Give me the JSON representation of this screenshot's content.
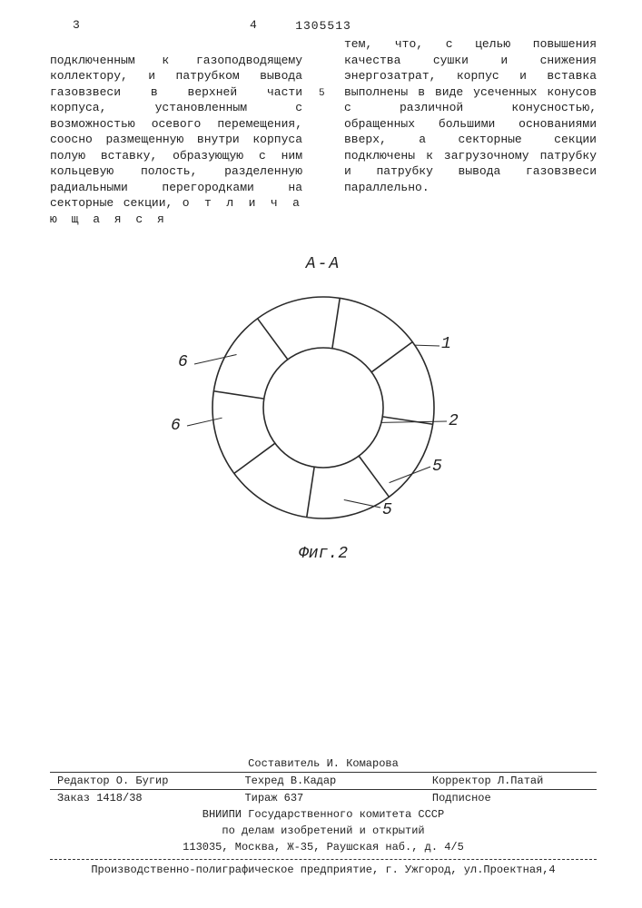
{
  "header": {
    "page_left": "3",
    "patent_number": "1305513",
    "page_right": "4"
  },
  "text": {
    "col_left": "подключенным к газоподводящему коллектору, и патрубком вывода газовзвеси в верхней части корпуса, установленным с возможностью осевого перемещения, соосно размещенную внутри корпуса полую вставку, образующую с ним кольцевую полость, разделенную радиальными перегородками на секторные секции, ",
    "col_left_spaced": "о т л и ч а ю щ а я с я",
    "col_right": "тем, что, с целью повышения качества сушки и снижения энергозатрат, корпус и вставка выполнены в виде усеченных конусов с различной конусностью, обращенных большими основаниями вверх, а секторные секции подключены к загрузочному патрубку и патрубку вывода газовзвеси параллельно.",
    "line_marker": "5"
  },
  "figure": {
    "section_label": "А-А",
    "caption": "Фиг.2",
    "outer_radius": 122,
    "inner_radius": 66,
    "stroke_color": "#2a2a2a",
    "stroke_width": 1.6,
    "n_sectors": 8,
    "callouts": {
      "c1": "1",
      "c2": "2",
      "c5a": "5",
      "c5b": "5",
      "c6a": "6",
      "c6b": "6"
    }
  },
  "footer": {
    "compiler": "Составитель И. Комарова",
    "editor": "Редактор О. Бугир",
    "techred": "Техред В.Кадар",
    "corrector": "Корректор Л.Патай",
    "order": "Заказ 1418/38",
    "tirazh": "Тираж 637",
    "subscr": "Подписное",
    "org1": "ВНИИПИ Государственного комитета СССР",
    "org2": "по делам изобретений и открытий",
    "addr": "113035, Москва, Ж-35, Раушская наб., д. 4/5",
    "production": "Производственно-полиграфическое предприятие, г. Ужгород, ул.Проектная,4"
  }
}
